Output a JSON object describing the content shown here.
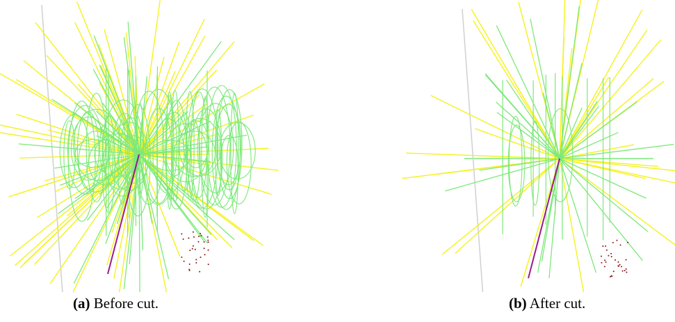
{
  "subfigures": [
    {
      "label": "(a)",
      "caption": "Before cut."
    },
    {
      "label": "(b)",
      "caption": "After cut."
    }
  ]
}
